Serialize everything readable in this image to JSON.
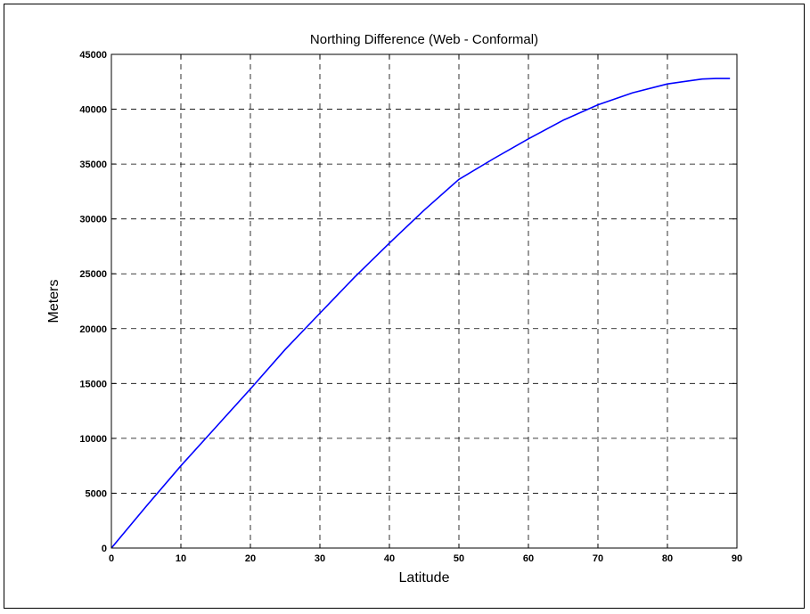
{
  "chart_data": {
    "type": "line",
    "title": "Northing Difference (Web - Conformal)",
    "xlabel": "Latitude",
    "ylabel": "Meters",
    "xlim": [
      0,
      90
    ],
    "ylim": [
      0,
      45000
    ],
    "xticks": [
      0,
      10,
      20,
      30,
      40,
      50,
      60,
      70,
      80,
      90
    ],
    "yticks": [
      0,
      5000,
      10000,
      15000,
      20000,
      25000,
      30000,
      35000,
      40000,
      45000
    ],
    "grid": true,
    "series": [
      {
        "color": "#0000ff",
        "x": [
          0,
          5,
          10,
          15,
          20,
          25,
          30,
          35,
          40,
          45,
          50,
          55,
          60,
          65,
          70,
          75,
          80,
          85,
          87,
          89
        ],
        "y": [
          0,
          3800,
          7500,
          11000,
          14500,
          18100,
          21400,
          24700,
          27800,
          30800,
          33600,
          35500,
          37300,
          39000,
          40400,
          41500,
          42300,
          42750,
          42800,
          42800
        ]
      }
    ]
  }
}
